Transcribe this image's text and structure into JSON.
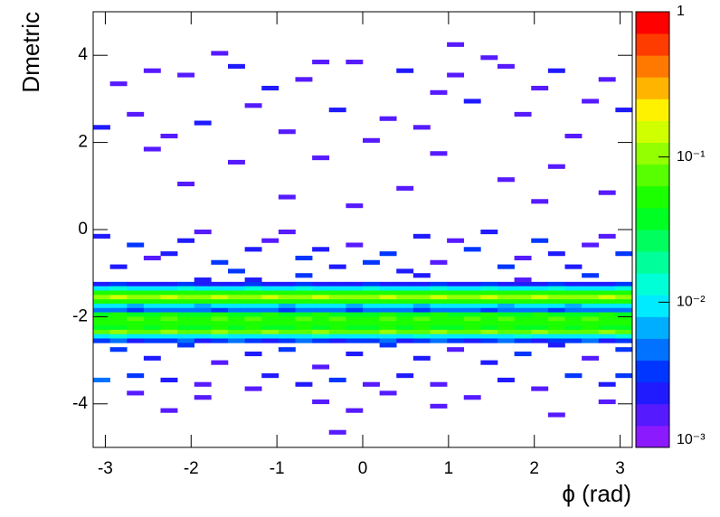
{
  "chart_data": {
    "type": "heatmap",
    "x_label": "ϕ (rad)",
    "y_label": "Dmetric",
    "xlim": [
      -3.1416,
      3.1416
    ],
    "xticks": [
      -3,
      -2,
      -1,
      0,
      1,
      2,
      3
    ],
    "ylim": [
      -5,
      5
    ],
    "yticks": [
      -4,
      -2,
      0,
      2,
      4
    ],
    "zlim": [
      0.001,
      1
    ],
    "log_z": true,
    "zticks": [
      {
        "value": 0.001,
        "label": "10⁻³"
      },
      {
        "value": 0.01,
        "label": "10⁻²"
      },
      {
        "value": 0.1,
        "label": "10⁻¹"
      },
      1
    ],
    "x_bins": 32,
    "y_bins": 100,
    "rows": [
      {
        "iy": 37,
        "z": [
          0.002,
          0.003,
          0.002,
          0.0025,
          0.002,
          0.003,
          0.002,
          0.002,
          0.0025,
          0.003,
          0.002,
          0.002,
          0.003,
          0.002,
          0.0025,
          0.002,
          0.003,
          0.002,
          0.002,
          0.0025,
          0.003,
          0.002,
          0.002,
          0.003,
          0.002,
          0.0025,
          0.002,
          0.003,
          0.002,
          0.002,
          0.0025,
          0.003
        ]
      },
      {
        "iy": 36,
        "z": [
          0.01,
          0.012,
          0.009,
          0.011,
          0.01,
          0.013,
          0.01,
          0.009,
          0.011,
          0.012,
          0.01,
          0.009,
          0.012,
          0.01,
          0.011,
          0.01,
          0.013,
          0.01,
          0.009,
          0.011,
          0.012,
          0.01,
          0.009,
          0.012,
          0.01,
          0.011,
          0.01,
          0.013,
          0.01,
          0.009,
          0.011,
          0.012
        ]
      },
      {
        "iy": 35,
        "z": [
          0.05,
          0.06,
          0.045,
          0.055,
          0.05,
          0.06,
          0.05,
          0.045,
          0.055,
          0.06,
          0.05,
          0.045,
          0.06,
          0.05,
          0.055,
          0.05,
          0.06,
          0.05,
          0.045,
          0.055,
          0.06,
          0.05,
          0.045,
          0.06,
          0.05,
          0.055,
          0.05,
          0.06,
          0.05,
          0.045,
          0.055,
          0.06
        ]
      },
      {
        "iy": 34,
        "z": [
          0.12,
          0.13,
          0.11,
          0.12,
          0.14,
          0.12,
          0.11,
          0.13,
          0.12,
          0.12,
          0.14,
          0.11,
          0.12,
          0.13,
          0.12,
          0.11,
          0.12,
          0.14,
          0.12,
          0.11,
          0.13,
          0.12,
          0.12,
          0.14,
          0.11,
          0.12,
          0.13,
          0.12,
          0.11,
          0.12,
          0.14,
          0.12
        ]
      },
      {
        "iy": 33,
        "z": [
          0.05,
          0.045,
          0.055,
          0.05,
          0.06,
          0.05,
          0.045,
          0.055,
          0.05,
          0.06,
          0.05,
          0.045,
          0.055,
          0.05,
          0.06,
          0.05,
          0.045,
          0.055,
          0.05,
          0.06,
          0.05,
          0.045,
          0.055,
          0.05,
          0.06,
          0.05,
          0.045,
          0.055,
          0.05,
          0.06,
          0.05,
          0.045
        ]
      },
      {
        "iy": 32,
        "z": [
          0.008,
          0.009,
          0.007,
          0.008,
          0.01,
          0.008,
          0.007,
          0.009,
          0.008,
          0.008,
          0.01,
          0.007,
          0.008,
          0.009,
          0.008,
          0.007,
          0.008,
          0.01,
          0.008,
          0.007,
          0.009,
          0.008,
          0.008,
          0.01,
          0.007,
          0.008,
          0.009,
          0.008,
          0.007,
          0.008,
          0.01,
          0.008
        ]
      },
      {
        "iy": 31,
        "z": [
          0.004,
          0.005,
          0.003,
          0.004,
          0.004,
          0.005,
          0.004,
          0.003,
          0.004,
          0.005,
          0.004,
          0.003,
          0.005,
          0.004,
          0.004,
          0.003,
          0.005,
          0.004,
          0.004,
          0.003,
          0.004,
          0.005,
          0.004,
          0.003,
          0.004,
          0.005,
          0.004,
          0.003,
          0.005,
          0.004,
          0.004,
          0.005
        ]
      },
      {
        "iy": 30,
        "z": [
          0.04,
          0.045,
          0.035,
          0.04,
          0.05,
          0.04,
          0.035,
          0.045,
          0.04,
          0.04,
          0.05,
          0.035,
          0.04,
          0.045,
          0.04,
          0.035,
          0.04,
          0.05,
          0.04,
          0.035,
          0.045,
          0.04,
          0.04,
          0.05,
          0.035,
          0.04,
          0.045,
          0.04,
          0.035,
          0.04,
          0.05,
          0.04
        ]
      },
      {
        "iy": 29,
        "z": [
          0.06,
          0.055,
          0.065,
          0.06,
          0.07,
          0.06,
          0.055,
          0.065,
          0.06,
          0.07,
          0.06,
          0.055,
          0.065,
          0.06,
          0.07,
          0.06,
          0.055,
          0.065,
          0.06,
          0.07,
          0.06,
          0.055,
          0.065,
          0.06,
          0.07,
          0.06,
          0.055,
          0.065,
          0.06,
          0.07,
          0.06,
          0.055
        ]
      },
      {
        "iy": 28,
        "z": [
          0.05,
          0.055,
          0.045,
          0.05,
          0.06,
          0.05,
          0.045,
          0.055,
          0.05,
          0.05,
          0.06,
          0.045,
          0.05,
          0.055,
          0.05,
          0.045,
          0.05,
          0.06,
          0.05,
          0.045,
          0.055,
          0.05,
          0.05,
          0.06,
          0.045,
          0.05,
          0.055,
          0.05,
          0.045,
          0.05,
          0.06,
          0.05
        ]
      },
      {
        "iy": 27,
        "z": [
          0.04,
          0.035,
          0.045,
          0.04,
          0.05,
          0.04,
          0.035,
          0.045,
          0.04,
          0.05,
          0.04,
          0.035,
          0.045,
          0.04,
          0.05,
          0.04,
          0.035,
          0.045,
          0.04,
          0.05,
          0.04,
          0.035,
          0.045,
          0.04,
          0.05,
          0.04,
          0.035,
          0.045,
          0.04,
          0.05,
          0.04,
          0.035
        ]
      },
      {
        "iy": 26,
        "z": [
          0.08,
          0.09,
          0.07,
          0.08,
          0.1,
          0.08,
          0.07,
          0.09,
          0.08,
          0.08,
          0.1,
          0.07,
          0.08,
          0.09,
          0.08,
          0.07,
          0.08,
          0.1,
          0.08,
          0.07,
          0.09,
          0.08,
          0.08,
          0.1,
          0.07,
          0.08,
          0.09,
          0.08,
          0.07,
          0.08,
          0.1,
          0.08
        ]
      },
      {
        "iy": 25,
        "z": [
          0.01,
          0.012,
          0.008,
          0.01,
          0.011,
          0.009,
          0.01,
          0.012,
          0.008,
          0.01,
          0.011,
          0.009,
          0.01,
          0.012,
          0.008,
          0.01,
          0.011,
          0.009,
          0.01,
          0.012,
          0.008,
          0.01,
          0.011,
          0.009,
          0.01,
          0.012,
          0.008,
          0.01,
          0.011,
          0.009,
          0.01,
          0.012
        ]
      },
      {
        "iy": 24,
        "z": [
          0.003,
          0.004,
          0.002,
          0.003,
          0.003,
          0.004,
          0.002,
          0.003,
          0.004,
          0.003,
          0.002,
          0.003,
          0.004,
          0.003,
          0.002,
          0.003,
          0.003,
          0.004,
          0.002,
          0.003,
          0.004,
          0.003,
          0.002,
          0.003,
          0.004,
          0.003,
          0.002,
          0.003,
          0.003,
          0.004,
          0.002,
          0.003
        ]
      }
    ],
    "cells": [
      [
        3,
        86,
        0.0015
      ],
      [
        5,
        85,
        0.0015
      ],
      [
        8,
        87,
        0.002
      ],
      [
        12,
        84,
        0.0015
      ],
      [
        15,
        88,
        0.0015
      ],
      [
        18,
        86,
        0.002
      ],
      [
        21,
        85,
        0.0015
      ],
      [
        24,
        87,
        0.0015
      ],
      [
        27,
        86,
        0.002
      ],
      [
        30,
        84,
        0.0015
      ],
      [
        1,
        83,
        0.0015
      ],
      [
        10,
        82,
        0.002
      ],
      [
        20,
        81,
        0.0015
      ],
      [
        26,
        82,
        0.0015
      ],
      [
        13,
        88,
        0.0015
      ],
      [
        7,
        90,
        0.0015
      ],
      [
        23,
        89,
        0.0015
      ],
      [
        21,
        92,
        0.0015
      ],
      [
        2,
        76,
        0.0015
      ],
      [
        6,
        74,
        0.002
      ],
      [
        9,
        78,
        0.0015
      ],
      [
        11,
        72,
        0.0015
      ],
      [
        14,
        77,
        0.002
      ],
      [
        17,
        75,
        0.0015
      ],
      [
        19,
        73,
        0.0015
      ],
      [
        22,
        79,
        0.002
      ],
      [
        25,
        76,
        0.0015
      ],
      [
        28,
        71,
        0.0015
      ],
      [
        31,
        77,
        0.002
      ],
      [
        4,
        71,
        0.0015
      ],
      [
        16,
        70,
        0.0015
      ],
      [
        29,
        79,
        0.0015
      ],
      [
        0,
        73,
        0.002
      ],
      [
        3,
        68,
        0.0015
      ],
      [
        8,
        65,
        0.0015
      ],
      [
        13,
        66,
        0.0015
      ],
      [
        20,
        67,
        0.0015
      ],
      [
        27,
        64,
        0.0015
      ],
      [
        5,
        60,
        0.0015
      ],
      [
        11,
        57,
        0.0015
      ],
      [
        18,
        59,
        0.0015
      ],
      [
        24,
        61,
        0.0015
      ],
      [
        30,
        58,
        0.0015
      ],
      [
        15,
        55,
        0.0015
      ],
      [
        26,
        56,
        0.0015
      ],
      [
        0,
        48,
        0.002
      ],
      [
        2,
        46,
        0.003
      ],
      [
        4,
        44,
        0.002
      ],
      [
        6,
        49,
        0.0015
      ],
      [
        7,
        42,
        0.003
      ],
      [
        9,
        45,
        0.002
      ],
      [
        10,
        47,
        0.0015
      ],
      [
        12,
        43,
        0.003
      ],
      [
        14,
        41,
        0.002
      ],
      [
        15,
        46,
        0.0015
      ],
      [
        17,
        44,
        0.003
      ],
      [
        19,
        48,
        0.002
      ],
      [
        20,
        42,
        0.0015
      ],
      [
        22,
        45,
        0.003
      ],
      [
        23,
        49,
        0.002
      ],
      [
        25,
        43,
        0.0015
      ],
      [
        26,
        47,
        0.003
      ],
      [
        28,
        41,
        0.002
      ],
      [
        29,
        46,
        0.0015
      ],
      [
        31,
        44,
        0.003
      ],
      [
        1,
        41,
        0.002
      ],
      [
        3,
        43,
        0.0015
      ],
      [
        5,
        47,
        0.002
      ],
      [
        8,
        40,
        0.003
      ],
      [
        11,
        49,
        0.0015
      ],
      [
        13,
        45,
        0.002
      ],
      [
        16,
        42,
        0.003
      ],
      [
        18,
        40,
        0.002
      ],
      [
        21,
        47,
        0.0015
      ],
      [
        24,
        41,
        0.003
      ],
      [
        27,
        44,
        0.002
      ],
      [
        30,
        48,
        0.0015
      ],
      [
        6,
        38,
        0.002
      ],
      [
        12,
        39,
        0.003
      ],
      [
        19,
        39,
        0.002
      ],
      [
        25,
        38,
        0.0015
      ],
      [
        9,
        38,
        0.002
      ],
      [
        29,
        39,
        0.003
      ],
      [
        1,
        22,
        0.003
      ],
      [
        3,
        20,
        0.002
      ],
      [
        5,
        23,
        0.003
      ],
      [
        7,
        19,
        0.0015
      ],
      [
        9,
        21,
        0.002
      ],
      [
        11,
        22,
        0.003
      ],
      [
        13,
        18,
        0.0015
      ],
      [
        15,
        21,
        0.002
      ],
      [
        17,
        23,
        0.003
      ],
      [
        19,
        20,
        0.002
      ],
      [
        21,
        22,
        0.0015
      ],
      [
        23,
        19,
        0.002
      ],
      [
        25,
        21,
        0.003
      ],
      [
        27,
        23,
        0.002
      ],
      [
        29,
        20,
        0.0015
      ],
      [
        31,
        22,
        0.003
      ],
      [
        2,
        16,
        0.003
      ],
      [
        4,
        15,
        0.002
      ],
      [
        6,
        14,
        0.0015
      ],
      [
        10,
        16,
        0.002
      ],
      [
        14,
        15,
        0.003
      ],
      [
        18,
        16,
        0.002
      ],
      [
        20,
        14,
        0.0015
      ],
      [
        24,
        15,
        0.002
      ],
      [
        28,
        16,
        0.003
      ],
      [
        30,
        14,
        0.002
      ],
      [
        0,
        15,
        0.004
      ],
      [
        31,
        16,
        0.003
      ],
      [
        16,
        14,
        0.0015
      ],
      [
        12,
        14,
        0.002
      ],
      [
        2,
        12,
        0.0015
      ],
      [
        6,
        11,
        0.0015
      ],
      [
        9,
        13,
        0.0015
      ],
      [
        13,
        10,
        0.0015
      ],
      [
        17,
        12,
        0.0015
      ],
      [
        22,
        11,
        0.0015
      ],
      [
        26,
        13,
        0.0015
      ],
      [
        30,
        10,
        0.0015
      ],
      [
        4,
        8,
        0.0015
      ],
      [
        15,
        8,
        0.0015
      ],
      [
        20,
        9,
        0.0015
      ],
      [
        27,
        7,
        0.0015
      ],
      [
        14,
        3,
        0.0015
      ]
    ]
  }
}
